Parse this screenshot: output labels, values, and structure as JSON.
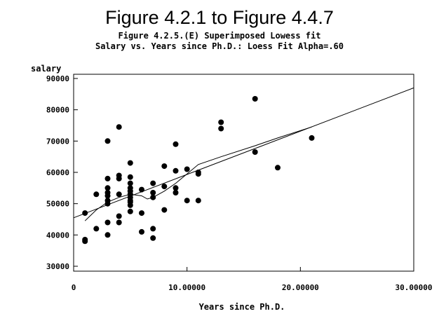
{
  "chart_data": {
    "type": "scatter",
    "title": "Figure 4.2.1 to Figure 4.4.7",
    "subtitle_1": "Figure 4.2.5.(E) Superimposed Lowess fit",
    "subtitle_2": "Salary vs. Years since Ph.D.: Loess Fit Alpha=.60",
    "xlabel": "Years since Ph.D.",
    "ylabel": "salary",
    "xlim": [
      0,
      30
    ],
    "ylim": [
      30000,
      90000
    ],
    "x_ticks": [
      0,
      10,
      20,
      30
    ],
    "x_tick_labels": [
      "0",
      "10.00000",
      "20.00000",
      "30.00000"
    ],
    "y_ticks": [
      30000,
      40000,
      50000,
      60000,
      70000,
      80000,
      90000
    ],
    "y_tick_labels": [
      "30000",
      "40000",
      "50000",
      "60000",
      "70000",
      "80000",
      "90000"
    ],
    "points": [
      [
        1,
        47000
      ],
      [
        1,
        38500
      ],
      [
        1,
        38000
      ],
      [
        2,
        53000
      ],
      [
        2,
        42000
      ],
      [
        3,
        70000
      ],
      [
        3,
        58000
      ],
      [
        3,
        55000
      ],
      [
        3,
        53500
      ],
      [
        3,
        52500
      ],
      [
        3,
        51000
      ],
      [
        3,
        50000
      ],
      [
        3,
        44000
      ],
      [
        3,
        40000
      ],
      [
        4,
        74500
      ],
      [
        4,
        59000
      ],
      [
        4,
        58000
      ],
      [
        4,
        53000
      ],
      [
        4,
        46000
      ],
      [
        4,
        44000
      ],
      [
        5,
        63000
      ],
      [
        5,
        58500
      ],
      [
        5,
        56500
      ],
      [
        5,
        55000
      ],
      [
        5,
        54000
      ],
      [
        5,
        53000
      ],
      [
        5,
        52000
      ],
      [
        5,
        51000
      ],
      [
        5,
        50500
      ],
      [
        5,
        49500
      ],
      [
        5,
        47500
      ],
      [
        6,
        54500
      ],
      [
        6,
        47000
      ],
      [
        6,
        41000
      ],
      [
        7,
        56500
      ],
      [
        7,
        53500
      ],
      [
        7,
        52000
      ],
      [
        7,
        42000
      ],
      [
        7,
        39000
      ],
      [
        8,
        62000
      ],
      [
        8,
        55500
      ],
      [
        8,
        48000
      ],
      [
        9,
        69000
      ],
      [
        9,
        60500
      ],
      [
        9,
        55000
      ],
      [
        9,
        53500
      ],
      [
        10,
        61000
      ],
      [
        10,
        51000
      ],
      [
        11,
        60000
      ],
      [
        11,
        59500
      ],
      [
        11,
        51000
      ],
      [
        13,
        76000
      ],
      [
        13,
        74000
      ],
      [
        16,
        83500
      ],
      [
        16,
        66500
      ],
      [
        18,
        61500
      ],
      [
        21,
        71000
      ]
    ],
    "series": [
      {
        "type": "line",
        "values": [
          [
            0,
            45500
          ],
          [
            30,
            87000
          ]
        ]
      },
      {
        "type": "line",
        "values": [
          [
            1,
            44500
          ],
          [
            2,
            48000
          ],
          [
            3,
            50500
          ],
          [
            4,
            52000
          ],
          [
            5,
            53000
          ],
          [
            6,
            52500
          ],
          [
            6.5,
            51500
          ],
          [
            7,
            52000
          ],
          [
            8,
            54000
          ],
          [
            9,
            56500
          ],
          [
            10,
            59500
          ],
          [
            11,
            62500
          ],
          [
            13,
            65000
          ],
          [
            16,
            68500
          ],
          [
            18,
            71000
          ],
          [
            21,
            74500
          ]
        ]
      }
    ],
    "grid": false,
    "legend": "none"
  }
}
